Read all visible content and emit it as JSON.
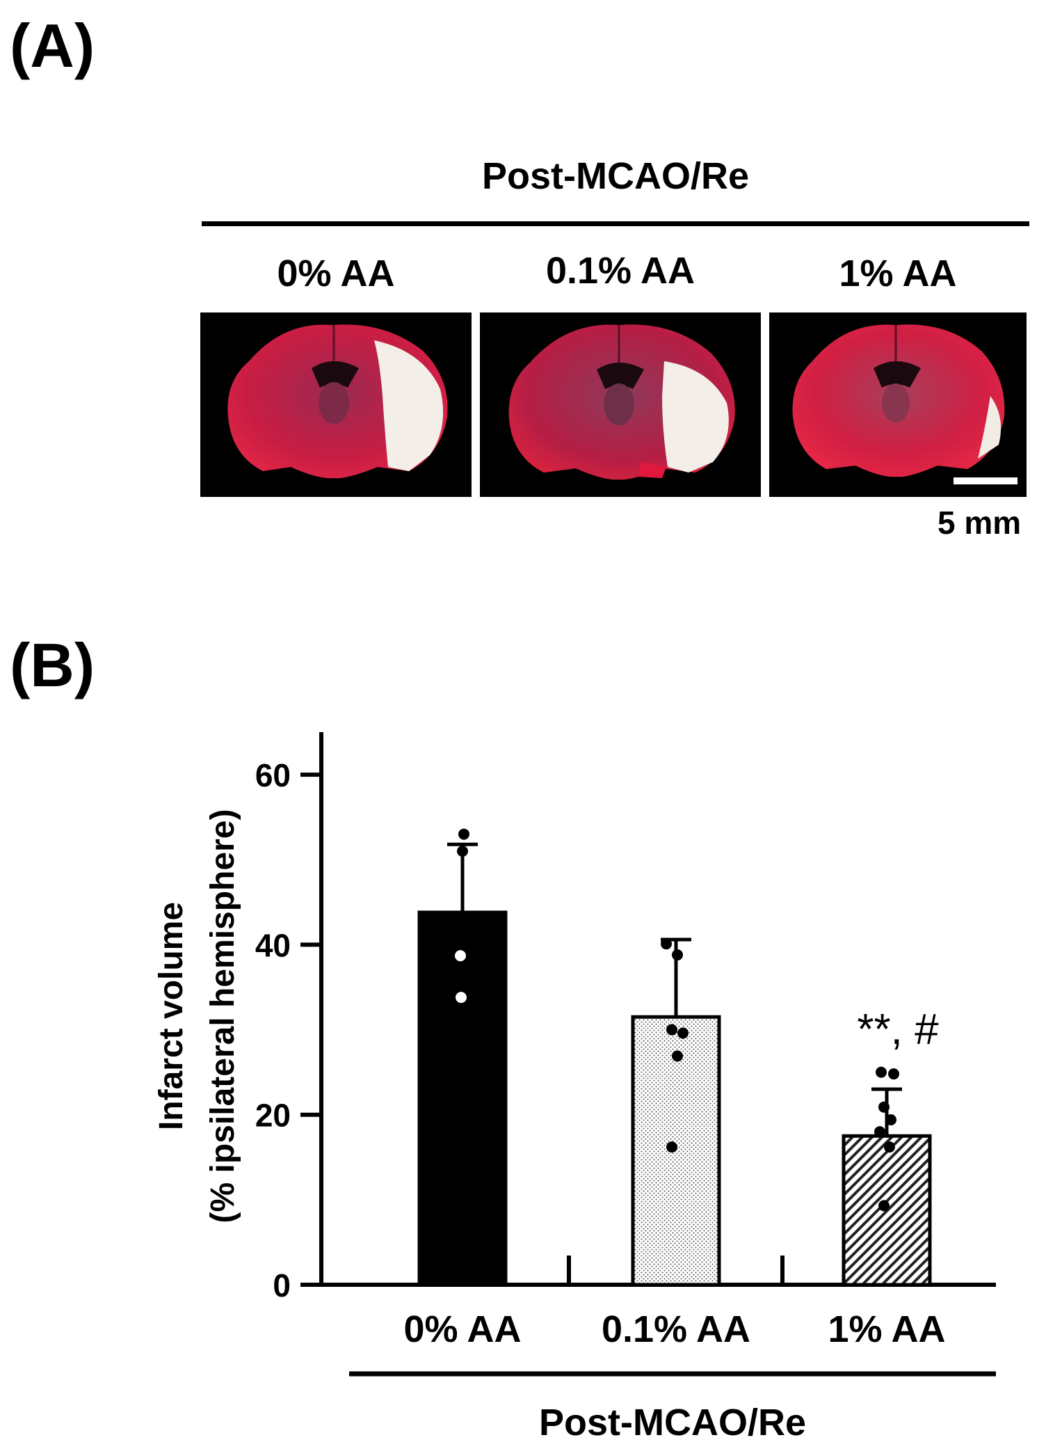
{
  "panels": {
    "a_label": "(A)",
    "b_label": "(B)"
  },
  "panel_a": {
    "header": "Post-MCAO/Re",
    "groups": [
      "0% AA",
      "0.1% AA",
      "1% AA"
    ],
    "scale_bar_label": "5 mm",
    "colors": {
      "tissue": "#d81e3c",
      "infarct": "#f1ece4",
      "background": "#000000"
    }
  },
  "chart_data": {
    "type": "bar",
    "categories": [
      "0% AA",
      "0.1% AA",
      "1% AA"
    ],
    "values": [
      43.8,
      31.5,
      17.5
    ],
    "error_upper": [
      51.8,
      40.6,
      23.0
    ],
    "points": [
      [
        53.0,
        51.0,
        38.7,
        33.8
      ],
      [
        40.1,
        38.8,
        30.0,
        29.6,
        26.9,
        16.2
      ],
      [
        25.0,
        24.8,
        20.9,
        19.4,
        18.0,
        16.2,
        9.3
      ]
    ],
    "fills": [
      "solid-black",
      "dotted",
      "hatched"
    ],
    "annotations": [
      "",
      "",
      "**, #"
    ],
    "ylabel_line1": "Infarct volume",
    "ylabel_line2": "(% ipsilateral hemisphere)",
    "xgroup_label": "Post-MCAO/Re",
    "ylim": [
      0,
      65
    ],
    "yticks": [
      0,
      20,
      40,
      60
    ]
  }
}
